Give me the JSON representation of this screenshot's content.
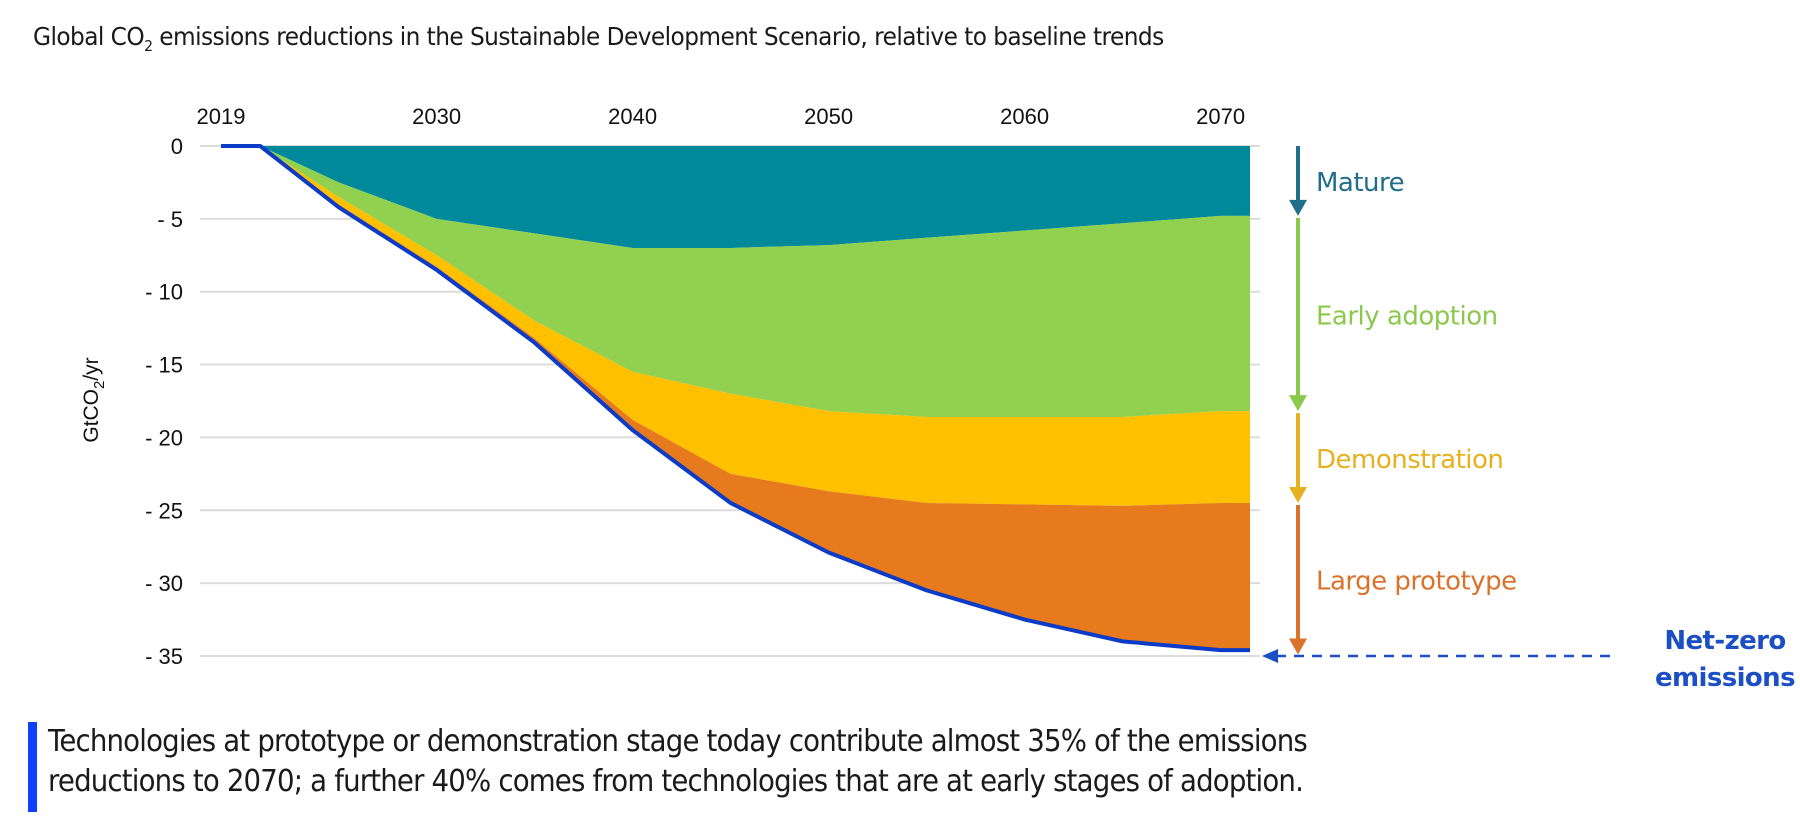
{
  "chart_data": {
    "type": "area",
    "stacked": true,
    "title": "Global CO2 emissions reductions in the Sustainable Development Scenario, relative to baseline trends",
    "title_parts": {
      "before": "Global CO",
      "sub": "2",
      "after": " emissions reductions in the Sustainable Development Scenario, relative to baseline trends"
    },
    "xlabel": "",
    "ylabel": "GtCO2/yr",
    "ylabel_parts": {
      "before": "GtCO",
      "sub": "2",
      "after": "/yr"
    },
    "x_ticks": [
      "2019",
      "2030",
      "2040",
      "2050",
      "2060",
      "2070"
    ],
    "y_ticks": [
      "0",
      "- 5",
      "- 10",
      "- 15",
      "- 20",
      "- 25",
      "- 30",
      "- 35"
    ],
    "y_tick_values": [
      0,
      -5,
      -10,
      -15,
      -20,
      -25,
      -30,
      -35
    ],
    "ylim": [
      -35,
      0
    ],
    "xlim": [
      2019,
      2070
    ],
    "grid": true,
    "x": [
      2019,
      2021,
      2025,
      2030,
      2035,
      2040,
      2045,
      2050,
      2055,
      2060,
      2065,
      2070
    ],
    "series": [
      {
        "name": "Mature",
        "color": "#00889b",
        "label_color": "#1f6e8c",
        "values": [
          0,
          0,
          -2.5,
          -5.0,
          -6.0,
          -7.0,
          -7.0,
          -6.8,
          -6.3,
          -5.8,
          -5.3,
          -4.8
        ]
      },
      {
        "name": "Early adoption",
        "color": "#92d050",
        "label_color": "#8cc84b",
        "values": [
          0,
          0,
          -1.0,
          -2.5,
          -6.0,
          -8.5,
          -10.0,
          -11.4,
          -12.3,
          -12.8,
          -13.3,
          -13.4
        ]
      },
      {
        "name": "Demonstration",
        "color": "#ffc000",
        "label_color": "#e6b11e",
        "values": [
          0,
          0,
          -0.5,
          -0.8,
          -1.2,
          -3.3,
          -5.5,
          -5.5,
          -5.9,
          -6.0,
          -6.1,
          -6.3
        ]
      },
      {
        "name": "Large prototype",
        "color": "#e87a1e",
        "label_color": "#d9722a",
        "values": [
          0,
          0,
          -0.2,
          -0.2,
          -0.3,
          -0.7,
          -2.0,
          -4.2,
          -6.0,
          -7.9,
          -9.3,
          -10.1
        ]
      }
    ],
    "total_line": {
      "name": "Net-zero emissions path",
      "color": "#0b3bc7",
      "values": [
        0,
        0,
        -4.2,
        -8.5,
        -13.5,
        -19.5,
        -24.5,
        -27.9,
        -30.5,
        -32.5,
        -34.0,
        -34.6
      ]
    },
    "annotation": {
      "text_lines": [
        "Net-zero",
        "emissions"
      ],
      "color": "#1c4fc4",
      "value": -35
    }
  },
  "caption": {
    "lines": [
      "Technologies at prototype or demonstration stage today contribute almost 35% of the emissions",
      "reductions to 2070; a further 40% comes from technologies that are at early stages of adoption."
    ],
    "bar_color": "#1040ff"
  }
}
